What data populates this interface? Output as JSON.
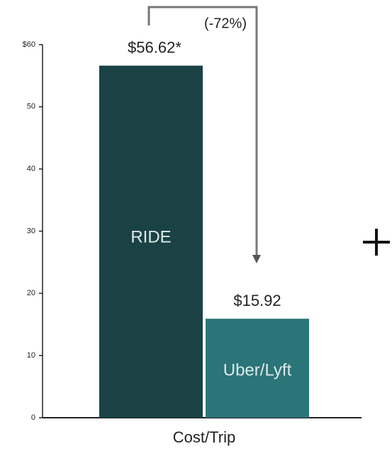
{
  "chart_data": {
    "type": "bar",
    "categories": [
      "RIDE",
      "Uber/Lyft"
    ],
    "values": [
      56.62,
      15.92
    ],
    "value_labels": [
      "$56.62*",
      "$15.92"
    ],
    "colors": [
      "#1a4245",
      "#2b7478"
    ],
    "x_label": "Cost/Trip",
    "annotation": "(-72%)",
    "ylim": [
      0,
      60
    ],
    "yticks": [
      0,
      10,
      20,
      30,
      40,
      50,
      {
        "value": 60,
        "label": "$60"
      }
    ]
  }
}
